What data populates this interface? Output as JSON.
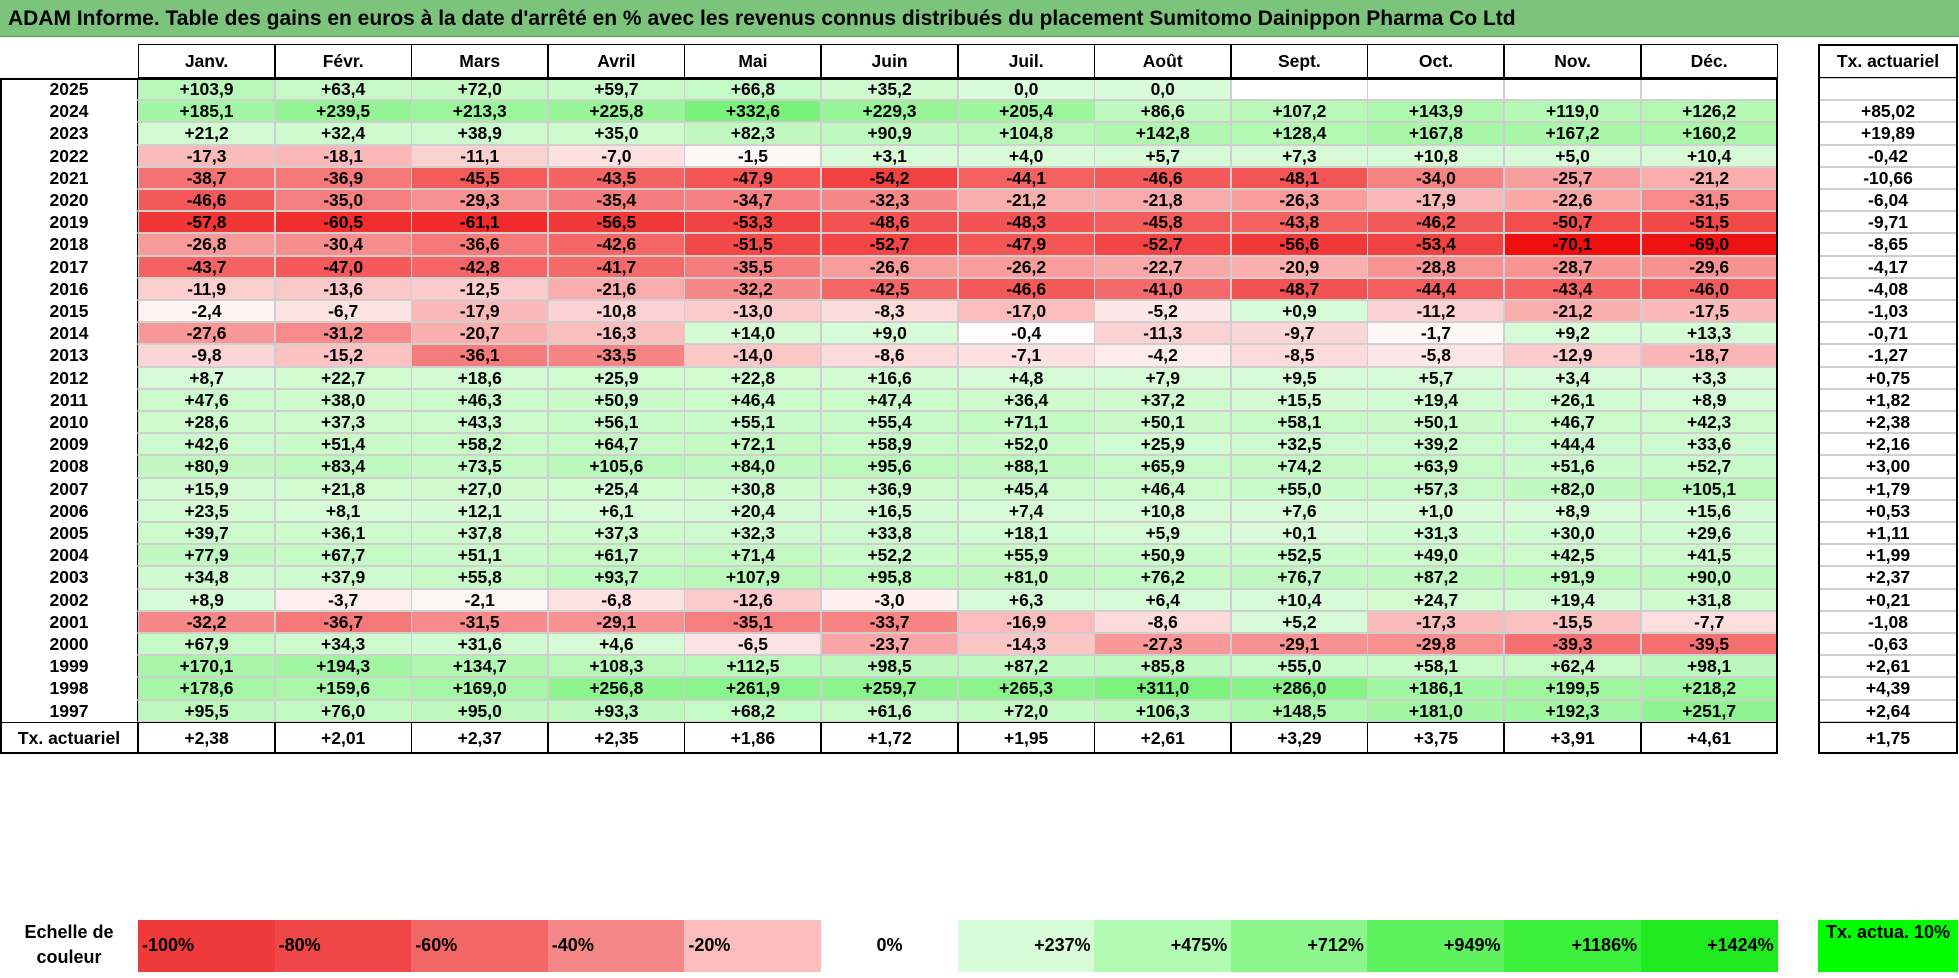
{
  "title": "ADAM Informe. Table des gains en euros à la date d'arrêté en % avec les revenus connus distribués du placement Sumitomo Dainippon Pharma Co Ltd",
  "chart_data": {
    "type": "heatmap",
    "months": [
      "Janv.",
      "Févr.",
      "Mars",
      "Avril",
      "Mai",
      "Juin",
      "Juil.",
      "Août",
      "Sept.",
      "Oct.",
      "Nov.",
      "Déc."
    ],
    "side_header": "Tx. actuariel",
    "rows": [
      {
        "year": "2025",
        "values": [
          "+103,9",
          "+63,4",
          "+72,0",
          "+59,7",
          "+66,8",
          "+35,2",
          "0,0",
          "0,0",
          "",
          "",
          "",
          ""
        ],
        "rate": ""
      },
      {
        "year": "2024",
        "values": [
          "+185,1",
          "+239,5",
          "+213,3",
          "+225,8",
          "+332,6",
          "+229,3",
          "+205,4",
          "+86,6",
          "+107,2",
          "+143,9",
          "+119,0",
          "+126,2"
        ],
        "rate": "+85,02"
      },
      {
        "year": "2023",
        "values": [
          "+21,2",
          "+32,4",
          "+38,9",
          "+35,0",
          "+82,3",
          "+90,9",
          "+104,8",
          "+142,8",
          "+128,4",
          "+167,8",
          "+167,2",
          "+160,2"
        ],
        "rate": "+19,89"
      },
      {
        "year": "2022",
        "values": [
          "-17,3",
          "-18,1",
          "-11,1",
          "-7,0",
          "-1,5",
          "+3,1",
          "+4,0",
          "+5,7",
          "+7,3",
          "+10,8",
          "+5,0",
          "+10,4"
        ],
        "rate": "-0,42"
      },
      {
        "year": "2021",
        "values": [
          "-38,7",
          "-36,9",
          "-45,5",
          "-43,5",
          "-47,9",
          "-54,2",
          "-44,1",
          "-46,6",
          "-48,1",
          "-34,0",
          "-25,7",
          "-21,2"
        ],
        "rate": "-10,66"
      },
      {
        "year": "2020",
        "values": [
          "-46,6",
          "-35,0",
          "-29,3",
          "-35,4",
          "-34,7",
          "-32,3",
          "-21,2",
          "-21,8",
          "-26,3",
          "-17,9",
          "-22,6",
          "-31,5"
        ],
        "rate": "-6,04"
      },
      {
        "year": "2019",
        "values": [
          "-57,8",
          "-60,5",
          "-61,1",
          "-56,5",
          "-53,3",
          "-48,6",
          "-48,3",
          "-45,8",
          "-43,8",
          "-46,2",
          "-50,7",
          "-51,5"
        ],
        "rate": "-9,71"
      },
      {
        "year": "2018",
        "values": [
          "-26,8",
          "-30,4",
          "-36,6",
          "-42,6",
          "-51,5",
          "-52,7",
          "-47,9",
          "-52,7",
          "-56,6",
          "-53,4",
          "-70,1",
          "-69,0"
        ],
        "rate": "-8,65"
      },
      {
        "year": "2017",
        "values": [
          "-43,7",
          "-47,0",
          "-42,8",
          "-41,7",
          "-35,5",
          "-26,6",
          "-26,2",
          "-22,7",
          "-20,9",
          "-28,8",
          "-28,7",
          "-29,6"
        ],
        "rate": "-4,17"
      },
      {
        "year": "2016",
        "values": [
          "-11,9",
          "-13,6",
          "-12,5",
          "-21,6",
          "-32,2",
          "-42,5",
          "-46,6",
          "-41,0",
          "-48,7",
          "-44,4",
          "-43,4",
          "-46,0"
        ],
        "rate": "-4,08"
      },
      {
        "year": "2015",
        "values": [
          "-2,4",
          "-6,7",
          "-17,9",
          "-10,8",
          "-13,0",
          "-8,3",
          "-17,0",
          "-5,2",
          "+0,9",
          "-11,2",
          "-21,2",
          "-17,5"
        ],
        "rate": "-1,03"
      },
      {
        "year": "2014",
        "values": [
          "-27,6",
          "-31,2",
          "-20,7",
          "-16,3",
          "+14,0",
          "+9,0",
          "-0,4",
          "-11,3",
          "-9,7",
          "-1,7",
          "+9,2",
          "+13,3"
        ],
        "rate": "-0,71"
      },
      {
        "year": "2013",
        "values": [
          "-9,8",
          "-15,2",
          "-36,1",
          "-33,5",
          "-14,0",
          "-8,6",
          "-7,1",
          "-4,2",
          "-8,5",
          "-5,8",
          "-12,9",
          "-18,7"
        ],
        "rate": "-1,27"
      },
      {
        "year": "2012",
        "values": [
          "+8,7",
          "+22,7",
          "+18,6",
          "+25,9",
          "+22,8",
          "+16,6",
          "+4,8",
          "+7,9",
          "+9,5",
          "+5,7",
          "+3,4",
          "+3,3"
        ],
        "rate": "+0,75"
      },
      {
        "year": "2011",
        "values": [
          "+47,6",
          "+38,0",
          "+46,3",
          "+50,9",
          "+46,4",
          "+47,4",
          "+36,4",
          "+37,2",
          "+15,5",
          "+19,4",
          "+26,1",
          "+8,9"
        ],
        "rate": "+1,82"
      },
      {
        "year": "2010",
        "values": [
          "+28,6",
          "+37,3",
          "+43,3",
          "+56,1",
          "+55,1",
          "+55,4",
          "+71,1",
          "+50,1",
          "+58,1",
          "+50,1",
          "+46,7",
          "+42,3"
        ],
        "rate": "+2,38"
      },
      {
        "year": "2009",
        "values": [
          "+42,6",
          "+51,4",
          "+58,2",
          "+64,7",
          "+72,1",
          "+58,9",
          "+52,0",
          "+25,9",
          "+32,5",
          "+39,2",
          "+44,4",
          "+33,6"
        ],
        "rate": "+2,16"
      },
      {
        "year": "2008",
        "values": [
          "+80,9",
          "+83,4",
          "+73,5",
          "+105,6",
          "+84,0",
          "+95,6",
          "+88,1",
          "+65,9",
          "+74,2",
          "+63,9",
          "+51,6",
          "+52,7"
        ],
        "rate": "+3,00"
      },
      {
        "year": "2007",
        "values": [
          "+15,9",
          "+21,8",
          "+27,0",
          "+25,4",
          "+30,8",
          "+36,9",
          "+45,4",
          "+46,4",
          "+55,0",
          "+57,3",
          "+82,0",
          "+105,1"
        ],
        "rate": "+1,79"
      },
      {
        "year": "2006",
        "values": [
          "+23,5",
          "+8,1",
          "+12,1",
          "+6,1",
          "+20,4",
          "+16,5",
          "+7,4",
          "+10,8",
          "+7,6",
          "+1,0",
          "+8,9",
          "+15,6"
        ],
        "rate": "+0,53"
      },
      {
        "year": "2005",
        "values": [
          "+39,7",
          "+36,1",
          "+37,8",
          "+37,3",
          "+32,3",
          "+33,8",
          "+18,1",
          "+5,9",
          "+0,1",
          "+31,3",
          "+30,0",
          "+29,6"
        ],
        "rate": "+1,11"
      },
      {
        "year": "2004",
        "values": [
          "+77,9",
          "+67,7",
          "+51,1",
          "+61,7",
          "+71,4",
          "+52,2",
          "+55,9",
          "+50,9",
          "+52,5",
          "+49,0",
          "+42,5",
          "+41,5"
        ],
        "rate": "+1,99"
      },
      {
        "year": "2003",
        "values": [
          "+34,8",
          "+37,9",
          "+55,8",
          "+93,7",
          "+107,9",
          "+95,8",
          "+81,0",
          "+76,2",
          "+76,7",
          "+87,2",
          "+91,9",
          "+90,0"
        ],
        "rate": "+2,37"
      },
      {
        "year": "2002",
        "values": [
          "+8,9",
          "-3,7",
          "-2,1",
          "-6,8",
          "-12,6",
          "-3,0",
          "+6,3",
          "+6,4",
          "+10,4",
          "+24,7",
          "+19,4",
          "+31,8"
        ],
        "rate": "+0,21"
      },
      {
        "year": "2001",
        "values": [
          "-32,2",
          "-36,7",
          "-31,5",
          "-29,1",
          "-35,1",
          "-33,7",
          "-16,9",
          "-8,6",
          "+5,2",
          "-17,3",
          "-15,5",
          "-7,7"
        ],
        "rate": "-1,08"
      },
      {
        "year": "2000",
        "values": [
          "+67,9",
          "+34,3",
          "+31,6",
          "+4,6",
          "-6,5",
          "-23,7",
          "-14,3",
          "-27,3",
          "-29,1",
          "-29,8",
          "-39,3",
          "-39,5"
        ],
        "rate": "-0,63"
      },
      {
        "year": "1999",
        "values": [
          "+170,1",
          "+194,3",
          "+134,7",
          "+108,3",
          "+112,5",
          "+98,5",
          "+87,2",
          "+85,8",
          "+55,0",
          "+58,1",
          "+62,4",
          "+98,1"
        ],
        "rate": "+2,61"
      },
      {
        "year": "1998",
        "values": [
          "+178,6",
          "+159,6",
          "+169,0",
          "+256,8",
          "+261,9",
          "+259,7",
          "+265,3",
          "+311,0",
          "+286,0",
          "+186,1",
          "+199,5",
          "+218,2"
        ],
        "rate": "+4,39"
      },
      {
        "year": "1997",
        "values": [
          "+95,5",
          "+76,0",
          "+95,0",
          "+93,3",
          "+68,2",
          "+61,6",
          "+72,0",
          "+106,3",
          "+148,5",
          "+181,0",
          "+192,3",
          "+251,7"
        ],
        "rate": "+2,64"
      }
    ],
    "footer": {
      "label": "Tx. actuariel",
      "values": [
        "+2,38",
        "+2,01",
        "+2,37",
        "+2,35",
        "+1,86",
        "+1,72",
        "+1,95",
        "+2,61",
        "+3,29",
        "+3,75",
        "+3,91",
        "+4,61"
      ],
      "rate": "+1,75"
    }
  },
  "legend": {
    "label": "Echelle de couleur",
    "items": [
      {
        "text": "-100%",
        "color": "#ee3a3a"
      },
      {
        "text": "-80%",
        "color": "#f04848"
      },
      {
        "text": "-60%",
        "color": "#f36666"
      },
      {
        "text": "-40%",
        "color": "#f68787"
      },
      {
        "text": "-20%",
        "color": "#fbbcbc"
      },
      {
        "text": "0%",
        "color": "#ffffff"
      },
      {
        "text": "+237%",
        "color": "#d8fcd8"
      },
      {
        "text": "+475%",
        "color": "#b2f9b2"
      },
      {
        "text": "+712%",
        "color": "#8cf68c"
      },
      {
        "text": "+949%",
        "color": "#5ef25e"
      },
      {
        "text": "+1186%",
        "color": "#3bef3b"
      },
      {
        "text": "+1424%",
        "color": "#1eea1e"
      }
    ],
    "side": "Tx. actua. 10%"
  }
}
